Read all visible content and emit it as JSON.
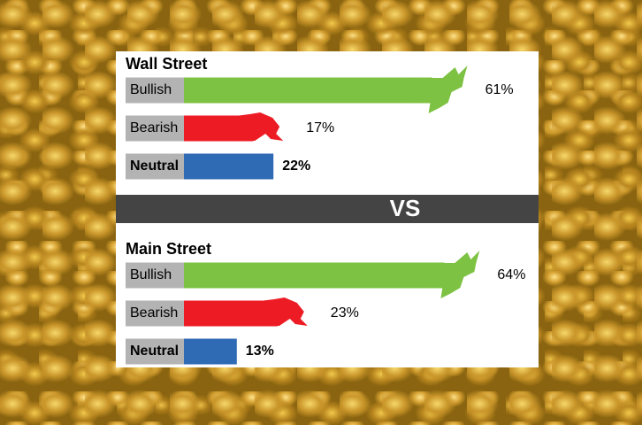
{
  "chart_data": [
    {
      "type": "bar",
      "title": "Wall Street",
      "categories": [
        "Bullish",
        "Bearish",
        "Neutral"
      ],
      "values": [
        61,
        17,
        22
      ],
      "value_labels": [
        "61%",
        "17%",
        "22%"
      ],
      "colors": [
        "#7dc242",
        "#ed1c24",
        "#2f6ab5"
      ]
    },
    {
      "type": "bar",
      "title": "Main Street",
      "categories": [
        "Bullish",
        "Bearish",
        "Neutral"
      ],
      "values": [
        64,
        23,
        13
      ],
      "value_labels": [
        "64%",
        "23%",
        "13%"
      ],
      "colors": [
        "#7dc242",
        "#ed1c24",
        "#2f6ab5"
      ]
    }
  ],
  "separator": "VS"
}
